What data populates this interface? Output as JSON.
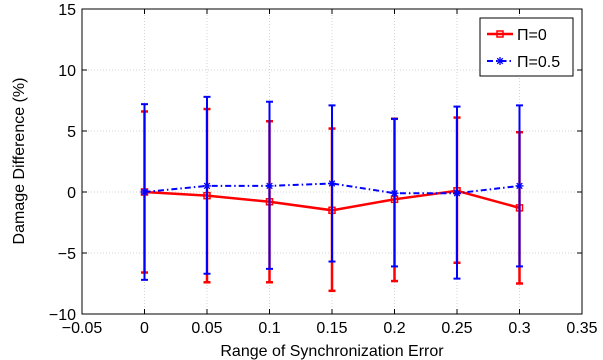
{
  "chart_data": {
    "type": "line",
    "title": "",
    "xlabel": "Range of Synchronization Error",
    "ylabel": "Damage Difference (%)",
    "xlim": [
      -0.05,
      0.35
    ],
    "ylim": [
      -10,
      15
    ],
    "xticks": [
      -0.05,
      0,
      0.05,
      0.1,
      0.15,
      0.2,
      0.25,
      0.3,
      0.35
    ],
    "xtick_labels": [
      "−0.05",
      "0",
      "0.05",
      "0.1",
      "0.15",
      "0.2",
      "0.25",
      "0.3",
      "0.35"
    ],
    "yticks": [
      -10,
      -5,
      0,
      5,
      10,
      15
    ],
    "ytick_labels": [
      "−10",
      "−5",
      "0",
      "5",
      "10",
      "15"
    ],
    "grid": true,
    "legend_position": "top-right",
    "series": [
      {
        "name": "Π=0",
        "color": "#ff0000",
        "line_style": "solid",
        "marker": "square",
        "x": [
          0,
          0.05,
          0.1,
          0.15,
          0.2,
          0.25,
          0.3
        ],
        "y": [
          0.0,
          -0.3,
          -0.8,
          -1.5,
          -0.6,
          0.1,
          -1.3
        ],
        "err_low": [
          -6.6,
          -7.4,
          -7.4,
          -8.1,
          -7.3,
          -5.8,
          -7.5
        ],
        "err_high": [
          6.6,
          6.8,
          5.8,
          5.2,
          6.0,
          6.1,
          4.9
        ]
      },
      {
        "name": "Π=0.5",
        "color": "#0000ff",
        "line_style": "dashdot",
        "marker": "star",
        "x": [
          0,
          0.05,
          0.1,
          0.15,
          0.2,
          0.25,
          0.3
        ],
        "y": [
          0.0,
          0.5,
          0.5,
          0.7,
          -0.1,
          -0.1,
          0.5
        ],
        "err_low": [
          -7.2,
          -6.7,
          -6.3,
          -5.7,
          -6.1,
          -7.1,
          -6.1
        ],
        "err_high": [
          7.2,
          7.8,
          7.4,
          7.1,
          6.0,
          7.0,
          7.1
        ]
      }
    ]
  }
}
